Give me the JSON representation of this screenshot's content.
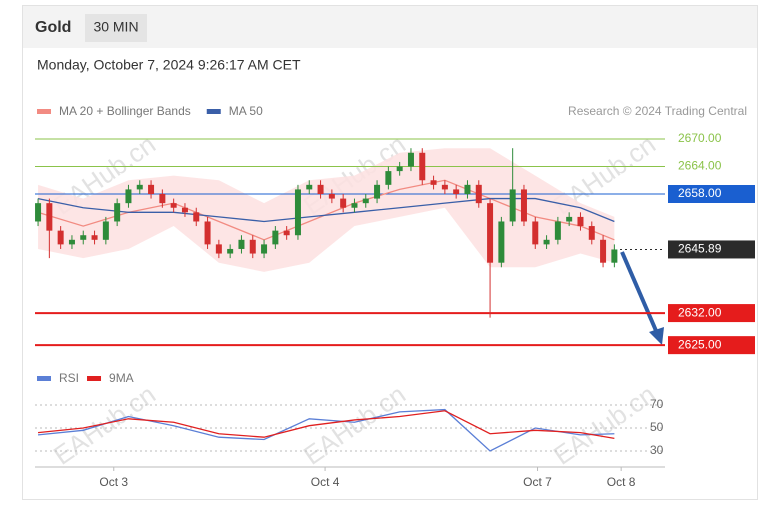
{
  "chart_data": {
    "type": "candlestick",
    "title": "Gold",
    "timeframe": "30 MIN",
    "timestamp": "Monday, October 7, 2024 9:26:17 AM CET",
    "source": "Research © 2024 Trading Central",
    "watermark": "EAHub.cn",
    "xlim": [
      -0.27,
      55.48
    ],
    "xticks": [
      {
        "value": 6.7,
        "label": "Oct 3"
      },
      {
        "value": 25.4,
        "label": "Oct 4"
      },
      {
        "value": 44.2,
        "label": "Oct 7"
      },
      {
        "value": 51.6,
        "label": "Oct 8"
      }
    ],
    "ylim": [
      2623,
      2673
    ],
    "up_color": "#2e8b3a",
    "down_color": "#d32f2f",
    "candles": {
      "x": [
        0,
        1,
        2,
        3,
        4,
        5,
        6,
        7,
        8,
        9,
        10,
        11,
        12,
        13,
        14,
        15,
        16,
        17,
        18,
        19,
        20,
        21,
        22,
        23,
        24,
        25,
        26,
        27,
        28,
        29,
        30,
        31,
        32,
        33,
        34,
        35,
        36,
        37,
        38,
        39,
        40,
        41,
        42,
        43,
        44,
        45,
        46,
        47,
        48,
        49,
        50,
        51
      ],
      "open": [
        2652,
        2656,
        2650,
        2647,
        2648,
        2649,
        2648,
        2652,
        2656,
        2659,
        2660,
        2658,
        2656,
        2655,
        2654,
        2652,
        2647,
        2645,
        2646,
        2648,
        2645,
        2647,
        2650,
        2649,
        2659,
        2660,
        2658,
        2657,
        2655,
        2656,
        2657,
        2660,
        2663,
        2664,
        2667,
        2661,
        2660,
        2659,
        2658,
        2660,
        2656,
        2643,
        2652,
        2659,
        2652,
        2647,
        2648,
        2652,
        2653,
        2651,
        2648,
        2643
      ],
      "high": [
        2657,
        2657,
        2651,
        2649,
        2650,
        2650,
        2653,
        2657,
        2660,
        2661,
        2661,
        2659,
        2657,
        2656,
        2655,
        2653,
        2648,
        2647,
        2649,
        2649,
        2648,
        2651,
        2651,
        2660,
        2661,
        2661,
        2659,
        2658,
        2657,
        2658,
        2661,
        2664,
        2665,
        2668,
        2668,
        2662,
        2661,
        2660,
        2661,
        2661,
        2657,
        2653,
        2668,
        2660,
        2653,
        2649,
        2653,
        2654,
        2654,
        2652,
        2649,
        2647
      ],
      "low": [
        2651,
        2644,
        2646,
        2646,
        2647,
        2647,
        2647,
        2651,
        2655,
        2658,
        2657,
        2655,
        2654,
        2653,
        2651,
        2646,
        2644,
        2644,
        2645,
        2644,
        2644,
        2646,
        2648,
        2648,
        2658,
        2657,
        2656,
        2654,
        2654,
        2655,
        2656,
        2659,
        2662,
        2663,
        2660,
        2659,
        2658,
        2657,
        2657,
        2655,
        2631,
        2642,
        2651,
        2651,
        2646,
        2646,
        2647,
        2651,
        2650,
        2647,
        2642,
        2642
      ],
      "close": [
        2656,
        2650,
        2647,
        2648,
        2649,
        2648,
        2652,
        2656,
        2659,
        2660,
        2658,
        2656,
        2655,
        2654,
        2652,
        2647,
        2645,
        2646,
        2648,
        2645,
        2647,
        2650,
        2649,
        2659,
        2660,
        2658,
        2657,
        2655,
        2656,
        2657,
        2660,
        2663,
        2664,
        2667,
        2661,
        2660,
        2659,
        2658,
        2660,
        2656,
        2643,
        2652,
        2659,
        2652,
        2647,
        2648,
        2652,
        2653,
        2651,
        2648,
        2643,
        2645.89
      ]
    },
    "series": [
      {
        "name": "MA 20 + Bollinger Bands",
        "color": "#f28b82",
        "band_color": "#fde0e0",
        "x": [
          0,
          4,
          8,
          12,
          16,
          20,
          24,
          28,
          32,
          36,
          40,
          44,
          48,
          51
        ],
        "values": [
          2654,
          2651,
          2654,
          2656,
          2652,
          2648,
          2652,
          2656,
          2659,
          2661,
          2657,
          2653,
          2651,
          2648
        ],
        "upper": [
          2660,
          2657,
          2661,
          2662,
          2661,
          2656,
          2661,
          2662,
          2667,
          2668,
          2668,
          2662,
          2656,
          2653
        ],
        "lower": [
          2646,
          2644,
          2646,
          2651,
          2643,
          2641,
          2643,
          2651,
          2653,
          2655,
          2642,
          2642,
          2645,
          2643
        ]
      },
      {
        "name": "MA 50",
        "color": "#3a5fa8",
        "x": [
          0,
          4,
          8,
          12,
          16,
          20,
          24,
          28,
          32,
          36,
          40,
          44,
          48,
          51
        ],
        "values": [
          2657,
          2655,
          2654,
          2654,
          2653,
          2652,
          2653,
          2654,
          2655,
          2656,
          2657,
          2657,
          2655,
          2652
        ]
      }
    ],
    "levels": [
      {
        "value": 2670,
        "label": "2670.00",
        "color": "#8bc34a",
        "style": "text"
      },
      {
        "value": 2664,
        "label": "2664.00",
        "color": "#8bc34a",
        "style": "text"
      },
      {
        "value": 2658,
        "label": "2658.00",
        "color": "#1a5fd0",
        "style": "box"
      },
      {
        "value": 2645.89,
        "label": "2645.89",
        "color": "#2b2b2b",
        "style": "dotted"
      },
      {
        "value": 2632,
        "label": "2632.00",
        "color": "#e51c1c",
        "style": "box"
      },
      {
        "value": 2625,
        "label": "2625.00",
        "color": "#e51c1c",
        "style": "box"
      }
    ],
    "rsi": {
      "ylim": [
        20,
        80
      ],
      "yticks": [
        70,
        50,
        30
      ],
      "x": [
        0,
        4,
        8,
        12,
        16,
        20,
        24,
        28,
        32,
        36,
        40,
        44,
        48,
        51
      ],
      "series": [
        {
          "name": "RSI",
          "color": "#5b7fd6",
          "values": [
            44,
            48,
            60,
            52,
            42,
            40,
            58,
            55,
            64,
            66,
            30,
            50,
            44,
            45
          ]
        },
        {
          "name": "9MA",
          "color": "#e02020",
          "values": [
            46,
            50,
            58,
            55,
            45,
            42,
            52,
            57,
            60,
            65,
            45,
            48,
            46,
            41
          ]
        }
      ]
    }
  }
}
